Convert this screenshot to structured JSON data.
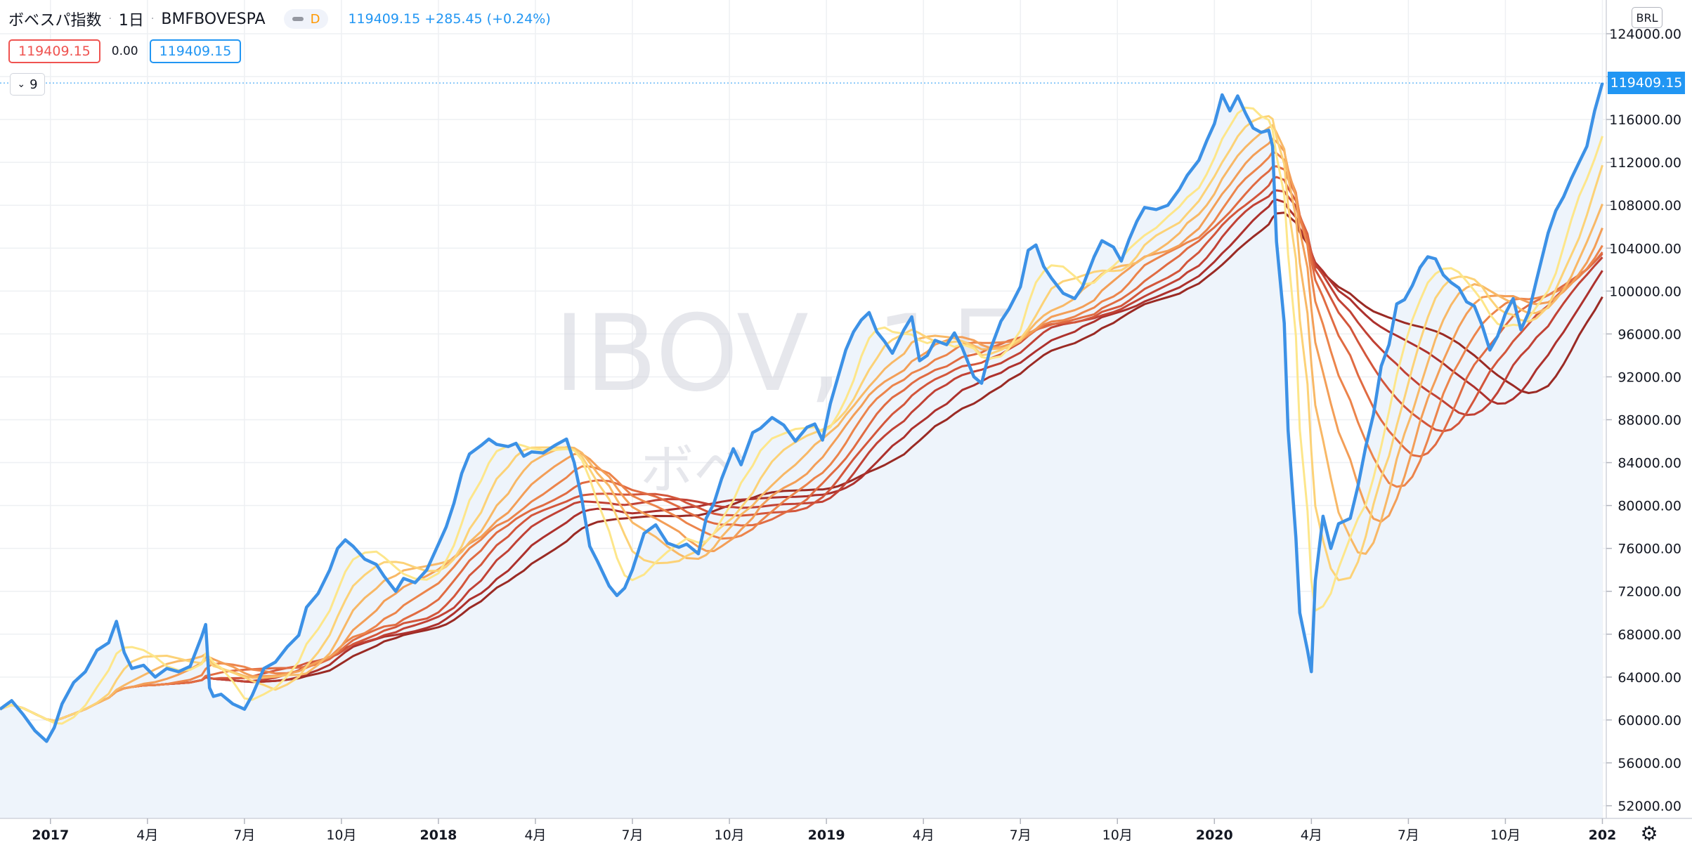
{
  "legend": {
    "symbol_name": "ボベスパ指数",
    "interval": "1日",
    "exchange": "BMFBOVESPA",
    "badge_letter": "D",
    "ohlc_text": "119409.15 +285.45 (+0.24%)",
    "price_red": "119409.15",
    "change_value": "0.00",
    "price_blue": "119409.15",
    "collapsed_count": "9"
  },
  "watermark": {
    "main": "IBOV, 1日",
    "sub": "ボベスパ指数"
  },
  "price_scale": {
    "currency": "BRL",
    "last_price_label": "119409.15"
  },
  "colors": {
    "price_line": "#3c91e6",
    "area_fill": "#eef4fb",
    "accent_blue": "#2196f3",
    "accent_red": "#ef5350",
    "ma_ribbon": [
      "#fde68a",
      "#fcd277",
      "#f8b866",
      "#f39e57",
      "#ec844b",
      "#e06b42",
      "#d3563b",
      "#c14235",
      "#ad312d",
      "#9a2a24"
    ]
  },
  "chart_data": {
    "type": "line",
    "title": "ボベスパ指数",
    "xlabel": "",
    "ylabel": "",
    "ylim": [
      51000,
      125000
    ],
    "x_ticks": [
      {
        "t": 2016.98,
        "label": "2017"
      },
      {
        "t": 2017.23,
        "label": "4月"
      },
      {
        "t": 2017.48,
        "label": "7月"
      },
      {
        "t": 2017.73,
        "label": "10月"
      },
      {
        "t": 2017.98,
        "label": "2018"
      },
      {
        "t": 2018.23,
        "label": "4月"
      },
      {
        "t": 2018.48,
        "label": "7月"
      },
      {
        "t": 2018.73,
        "label": "10月"
      },
      {
        "t": 2018.98,
        "label": "2019"
      },
      {
        "t": 2019.23,
        "label": "4月"
      },
      {
        "t": 2019.48,
        "label": "7月"
      },
      {
        "t": 2019.73,
        "label": "10月"
      },
      {
        "t": 2019.98,
        "label": "2020"
      },
      {
        "t": 2020.23,
        "label": "4月"
      },
      {
        "t": 2020.48,
        "label": "7月"
      },
      {
        "t": 2020.73,
        "label": "10月"
      },
      {
        "t": 2020.98,
        "label": "202"
      }
    ],
    "y_ticks": [
      52000,
      56000,
      60000,
      64000,
      68000,
      72000,
      76000,
      80000,
      84000,
      88000,
      92000,
      96000,
      100000,
      104000,
      108000,
      112000,
      116000,
      120000,
      124000
    ],
    "y_tick_labels": [
      "52000.00",
      "56000.00",
      "60000.00",
      "64000.00",
      "68000.00",
      "72000.00",
      "76000.00",
      "80000.00",
      "84000.00",
      "88000.00",
      "92000.00",
      "96000.00",
      "100000.00",
      "104000.00",
      "108000.00",
      "112000.00",
      "116000.00",
      "120000.00",
      "124000.00"
    ],
    "last_value": 119409.15,
    "series": [
      {
        "values": [
          [
            2016.85,
            61000
          ],
          [
            2016.88,
            61800
          ],
          [
            2016.91,
            60500
          ],
          [
            2016.94,
            59000
          ],
          [
            2016.97,
            58000
          ],
          [
            2016.99,
            59300
          ],
          [
            2017.01,
            61500
          ],
          [
            2017.04,
            63500
          ],
          [
            2017.07,
            64500
          ],
          [
            2017.1,
            66500
          ],
          [
            2017.13,
            67200
          ],
          [
            2017.15,
            69200
          ],
          [
            2017.17,
            66300
          ],
          [
            2017.19,
            64800
          ],
          [
            2017.22,
            65100
          ],
          [
            2017.25,
            64000
          ],
          [
            2017.28,
            64800
          ],
          [
            2017.31,
            64500
          ],
          [
            2017.34,
            65000
          ],
          [
            2017.37,
            67800
          ],
          [
            2017.38,
            68900
          ],
          [
            2017.39,
            63000
          ],
          [
            2017.4,
            62200
          ],
          [
            2017.42,
            62400
          ],
          [
            2017.45,
            61500
          ],
          [
            2017.48,
            61000
          ],
          [
            2017.5,
            62300
          ],
          [
            2017.53,
            64800
          ],
          [
            2017.56,
            65400
          ],
          [
            2017.59,
            66800
          ],
          [
            2017.62,
            67900
          ],
          [
            2017.64,
            70500
          ],
          [
            2017.67,
            71800
          ],
          [
            2017.7,
            74000
          ],
          [
            2017.72,
            76000
          ],
          [
            2017.74,
            76800
          ],
          [
            2017.76,
            76200
          ],
          [
            2017.79,
            75000
          ],
          [
            2017.82,
            74500
          ],
          [
            2017.84,
            73400
          ],
          [
            2017.87,
            72000
          ],
          [
            2017.89,
            73200
          ],
          [
            2017.92,
            72800
          ],
          [
            2017.95,
            74000
          ],
          [
            2017.98,
            76400
          ],
          [
            2018.0,
            78000
          ],
          [
            2018.02,
            80200
          ],
          [
            2018.04,
            83000
          ],
          [
            2018.06,
            84800
          ],
          [
            2018.09,
            85600
          ],
          [
            2018.11,
            86200
          ],
          [
            2018.13,
            85700
          ],
          [
            2018.16,
            85500
          ],
          [
            2018.18,
            85800
          ],
          [
            2018.2,
            84600
          ],
          [
            2018.22,
            85000
          ],
          [
            2018.25,
            84900
          ],
          [
            2018.28,
            85600
          ],
          [
            2018.31,
            86200
          ],
          [
            2018.33,
            84000
          ],
          [
            2018.35,
            80500
          ],
          [
            2018.37,
            76200
          ],
          [
            2018.39,
            74800
          ],
          [
            2018.42,
            72500
          ],
          [
            2018.44,
            71600
          ],
          [
            2018.46,
            72300
          ],
          [
            2018.48,
            74000
          ],
          [
            2018.51,
            77400
          ],
          [
            2018.54,
            78200
          ],
          [
            2018.57,
            76500
          ],
          [
            2018.6,
            76100
          ],
          [
            2018.62,
            76400
          ],
          [
            2018.65,
            75500
          ],
          [
            2018.67,
            78800
          ],
          [
            2018.69,
            80200
          ],
          [
            2018.71,
            82500
          ],
          [
            2018.74,
            85300
          ],
          [
            2018.76,
            83800
          ],
          [
            2018.79,
            86800
          ],
          [
            2018.81,
            87200
          ],
          [
            2018.84,
            88200
          ],
          [
            2018.87,
            87500
          ],
          [
            2018.9,
            86000
          ],
          [
            2018.93,
            87300
          ],
          [
            2018.95,
            87600
          ],
          [
            2018.97,
            86100
          ],
          [
            2018.99,
            89500
          ],
          [
            2019.01,
            92000
          ],
          [
            2019.03,
            94500
          ],
          [
            2019.05,
            96200
          ],
          [
            2019.07,
            97300
          ],
          [
            2019.09,
            98000
          ],
          [
            2019.11,
            96200
          ],
          [
            2019.13,
            95300
          ],
          [
            2019.15,
            94200
          ],
          [
            2019.18,
            96400
          ],
          [
            2019.2,
            97600
          ],
          [
            2019.22,
            93500
          ],
          [
            2019.24,
            94000
          ],
          [
            2019.26,
            95400
          ],
          [
            2019.29,
            95000
          ],
          [
            2019.31,
            96100
          ],
          [
            2019.33,
            94700
          ],
          [
            2019.36,
            92000
          ],
          [
            2019.38,
            91400
          ],
          [
            2019.4,
            94300
          ],
          [
            2019.43,
            97200
          ],
          [
            2019.45,
            98300
          ],
          [
            2019.48,
            100400
          ],
          [
            2019.5,
            103800
          ],
          [
            2019.52,
            104300
          ],
          [
            2019.54,
            102300
          ],
          [
            2019.56,
            101200
          ],
          [
            2019.59,
            99800
          ],
          [
            2019.62,
            99300
          ],
          [
            2019.64,
            100400
          ],
          [
            2019.67,
            103200
          ],
          [
            2019.69,
            104700
          ],
          [
            2019.72,
            104100
          ],
          [
            2019.74,
            102800
          ],
          [
            2019.76,
            104800
          ],
          [
            2019.78,
            106500
          ],
          [
            2019.8,
            107800
          ],
          [
            2019.83,
            107600
          ],
          [
            2019.86,
            108000
          ],
          [
            2019.89,
            109500
          ],
          [
            2019.91,
            110800
          ],
          [
            2019.94,
            112200
          ],
          [
            2019.96,
            114000
          ],
          [
            2019.98,
            115600
          ],
          [
            2020.0,
            118300
          ],
          [
            2020.02,
            116800
          ],
          [
            2020.04,
            118200
          ],
          [
            2020.06,
            116600
          ],
          [
            2020.08,
            115200
          ],
          [
            2020.1,
            114800
          ],
          [
            2020.12,
            115000
          ],
          [
            2020.13,
            113500
          ],
          [
            2020.14,
            104600
          ],
          [
            2020.16,
            97000
          ],
          [
            2020.17,
            87000
          ],
          [
            2020.19,
            77000
          ],
          [
            2020.2,
            70000
          ],
          [
            2020.22,
            66500
          ],
          [
            2020.23,
            64500
          ],
          [
            2020.24,
            73000
          ],
          [
            2020.26,
            79000
          ],
          [
            2020.28,
            76000
          ],
          [
            2020.3,
            78300
          ],
          [
            2020.33,
            78800
          ],
          [
            2020.35,
            81800
          ],
          [
            2020.37,
            85500
          ],
          [
            2020.39,
            88500
          ],
          [
            2020.41,
            93000
          ],
          [
            2020.43,
            95000
          ],
          [
            2020.45,
            98800
          ],
          [
            2020.47,
            99200
          ],
          [
            2020.49,
            100500
          ],
          [
            2020.51,
            102200
          ],
          [
            2020.53,
            103200
          ],
          [
            2020.55,
            103000
          ],
          [
            2020.57,
            101500
          ],
          [
            2020.59,
            100800
          ],
          [
            2020.61,
            100300
          ],
          [
            2020.63,
            99000
          ],
          [
            2020.65,
            98600
          ],
          [
            2020.67,
            96800
          ],
          [
            2020.69,
            94500
          ],
          [
            2020.71,
            95800
          ],
          [
            2020.73,
            97900
          ],
          [
            2020.75,
            99300
          ],
          [
            2020.77,
            96400
          ],
          [
            2020.79,
            98000
          ],
          [
            2020.81,
            101000
          ],
          [
            2020.84,
            105400
          ],
          [
            2020.86,
            107500
          ],
          [
            2020.88,
            108800
          ],
          [
            2020.9,
            110500
          ],
          [
            2020.92,
            112000
          ],
          [
            2020.94,
            113500
          ],
          [
            2020.96,
            116800
          ],
          [
            2020.98,
            119409
          ]
        ]
      }
    ],
    "ma_periods": [
      5,
      8,
      11,
      14,
      17,
      20,
      23,
      26,
      30,
      34
    ]
  }
}
